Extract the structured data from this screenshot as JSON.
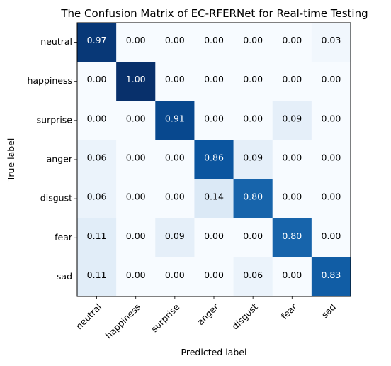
{
  "chart_data": {
    "type": "heatmap",
    "title": "The Confusion Matrix of EC-RFERNet for Real-time Testing",
    "xlabel": "Predicted label",
    "ylabel": "True label",
    "x_categories": [
      "neutral",
      "happiness",
      "surprise",
      "anger",
      "disgust",
      "fear",
      "sad"
    ],
    "y_categories": [
      "neutral",
      "happiness",
      "surprise",
      "anger",
      "disgust",
      "fear",
      "sad"
    ],
    "values": [
      [
        0.97,
        0.0,
        0.0,
        0.0,
        0.0,
        0.0,
        0.03
      ],
      [
        0.0,
        1.0,
        0.0,
        0.0,
        0.0,
        0.0,
        0.0
      ],
      [
        0.0,
        0.0,
        0.91,
        0.0,
        0.0,
        0.09,
        0.0
      ],
      [
        0.06,
        0.0,
        0.0,
        0.86,
        0.09,
        0.0,
        0.0
      ],
      [
        0.06,
        0.0,
        0.0,
        0.14,
        0.8,
        0.0,
        0.0
      ],
      [
        0.11,
        0.0,
        0.09,
        0.0,
        0.0,
        0.8,
        0.0
      ],
      [
        0.11,
        0.0,
        0.0,
        0.0,
        0.06,
        0.0,
        0.83
      ]
    ],
    "value_format": "0.00",
    "colormap": "Blues",
    "vmin": 0,
    "vmax": 1,
    "colorbar": false,
    "grid": false
  }
}
